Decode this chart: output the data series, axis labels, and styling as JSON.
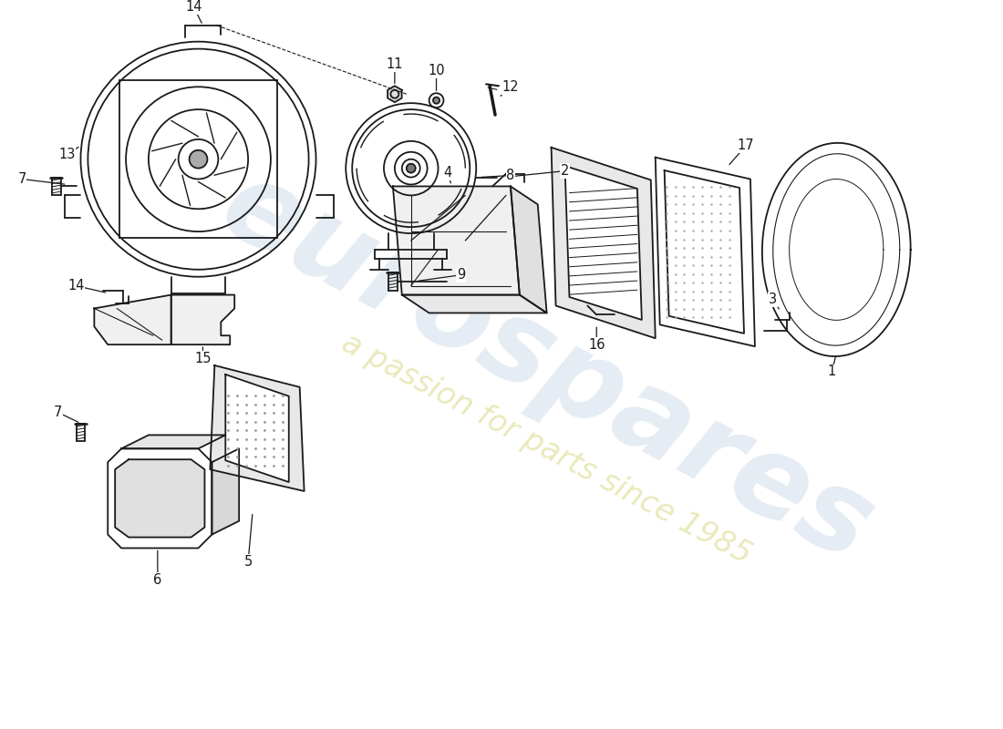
{
  "background_color": "#ffffff",
  "line_color": "#1a1a1a",
  "watermark1": "eurospares",
  "watermark2": "a passion for parts since 1985",
  "wm_color1": "#c5d5e5",
  "wm_color2": "#dede98"
}
